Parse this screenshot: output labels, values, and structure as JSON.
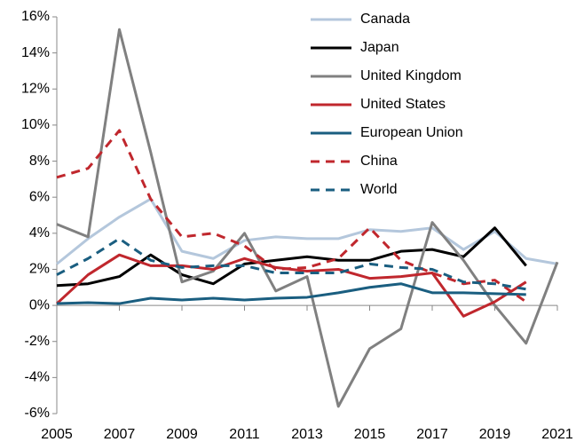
{
  "chart_data": {
    "type": "line",
    "x": [
      2005,
      2006,
      2007,
      2008,
      2009,
      2010,
      2011,
      2012,
      2013,
      2014,
      2015,
      2016,
      2017,
      2018,
      2019,
      2020,
      2021
    ],
    "series": [
      {
        "name": "Canada",
        "color": "#b4c7dc",
        "dashed": false,
        "values": [
          2.3,
          3.7,
          4.9,
          5.9,
          3.0,
          2.6,
          3.6,
          3.8,
          3.7,
          3.7,
          4.2,
          4.1,
          4.3,
          3.1,
          4.1,
          2.6,
          2.3
        ]
      },
      {
        "name": "Japan",
        "color": "#000000",
        "dashed": false,
        "values": [
          1.1,
          1.2,
          1.6,
          2.8,
          1.7,
          1.2,
          2.3,
          2.5,
          2.7,
          2.5,
          2.5,
          3.0,
          3.1,
          2.7,
          4.3,
          2.2,
          null
        ]
      },
      {
        "name": "United Kingdom",
        "color": "#808080",
        "dashed": false,
        "values": [
          4.5,
          3.8,
          15.3,
          8.5,
          1.3,
          1.9,
          4.0,
          0.8,
          1.6,
          -5.6,
          -2.4,
          -1.3,
          4.6,
          2.5,
          0.0,
          -2.1,
          2.4
        ]
      },
      {
        "name": "United States",
        "color": "#c0272d",
        "dashed": false,
        "values": [
          0.1,
          1.7,
          2.8,
          2.2,
          2.2,
          2.0,
          2.6,
          2.1,
          1.9,
          2.0,
          1.5,
          1.6,
          1.8,
          -0.6,
          0.2,
          1.3,
          null
        ]
      },
      {
        "name": "European Union",
        "color": "#1a5e80",
        "dashed": false,
        "values": [
          0.1,
          0.15,
          0.1,
          0.4,
          0.3,
          0.4,
          0.3,
          0.4,
          0.45,
          0.7,
          1.0,
          1.2,
          0.7,
          0.7,
          0.65,
          0.6,
          null
        ]
      },
      {
        "name": "China",
        "color": "#c0272d",
        "dashed": true,
        "values": [
          7.1,
          7.6,
          9.7,
          5.9,
          3.8,
          4.0,
          3.3,
          2.0,
          2.1,
          2.6,
          4.3,
          2.5,
          1.8,
          1.2,
          1.4,
          0.2,
          null
        ]
      },
      {
        "name": "World",
        "color": "#1a5e80",
        "dashed": true,
        "values": [
          1.7,
          2.6,
          3.7,
          2.5,
          2.1,
          2.2,
          2.2,
          1.8,
          1.8,
          1.8,
          2.3,
          2.1,
          2.0,
          1.3,
          1.2,
          0.9,
          null
        ]
      }
    ],
    "xlim": [
      2005,
      2021
    ],
    "xticks": [
      2005,
      2007,
      2009,
      2011,
      2013,
      2015,
      2017,
      2019,
      2021
    ],
    "ylim": [
      -6,
      16
    ],
    "yticks": [
      {
        "value": -6,
        "label": "-6%"
      },
      {
        "value": -4,
        "label": "-4%"
      },
      {
        "value": -2,
        "label": "-2%"
      },
      {
        "value": 0,
        "label": "0%"
      },
      {
        "value": 2,
        "label": "2%"
      },
      {
        "value": 4,
        "label": "4%"
      },
      {
        "value": 6,
        "label": "6%"
      },
      {
        "value": 8,
        "label": "8%"
      },
      {
        "value": 10,
        "label": "10%"
      },
      {
        "value": 12,
        "label": "12%"
      },
      {
        "value": 14,
        "label": "14%"
      },
      {
        "value": 16,
        "label": "16%"
      }
    ],
    "legend": "top-right"
  }
}
